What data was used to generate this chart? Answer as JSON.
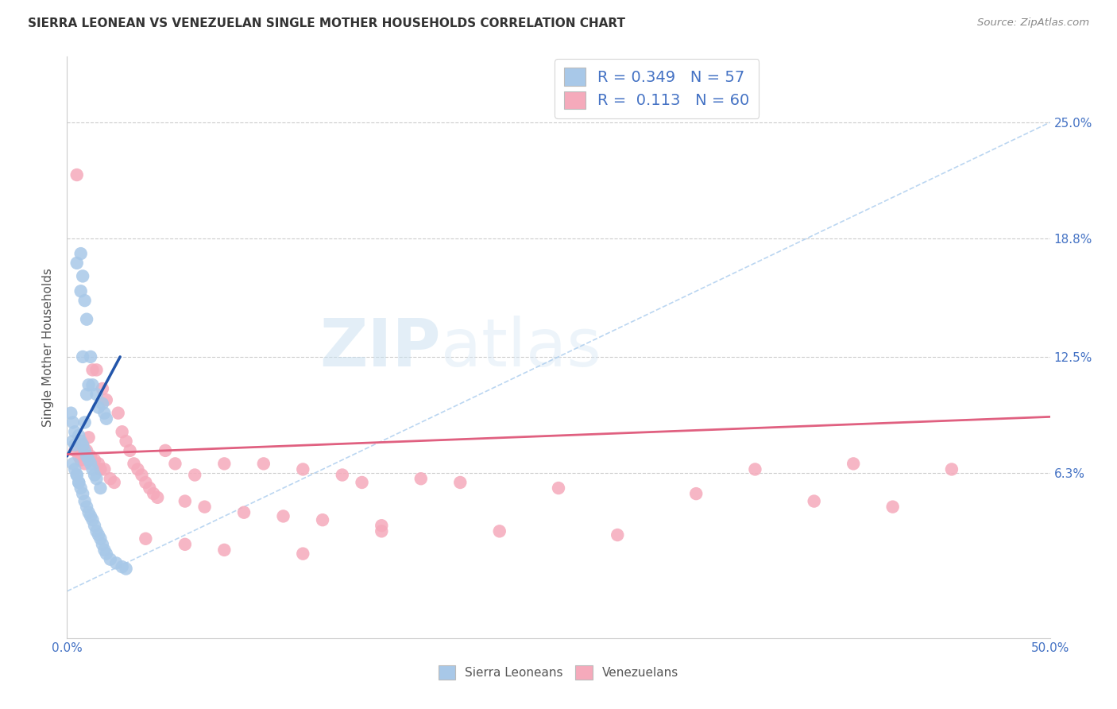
{
  "title": "SIERRA LEONEAN VS VENEZUELAN SINGLE MOTHER HOUSEHOLDS CORRELATION CHART",
  "source": "Source: ZipAtlas.com",
  "ylabel": "Single Mother Households",
  "ytick_labels": [
    "6.3%",
    "12.5%",
    "18.8%",
    "25.0%"
  ],
  "ytick_values": [
    0.063,
    0.125,
    0.188,
    0.25
  ],
  "xlim": [
    0.0,
    0.5
  ],
  "ylim": [
    -0.025,
    0.285
  ],
  "legend1_R": "0.349",
  "legend1_N": "57",
  "legend2_R": "0.113",
  "legend2_N": "60",
  "sl_color": "#a8c8e8",
  "vz_color": "#f5aabb",
  "sl_line_color": "#2255aa",
  "vz_line_color": "#e06080",
  "dash_color": "#aaccee",
  "watermark_zip": "ZIP",
  "watermark_atlas": "atlas",
  "background_color": "#ffffff",
  "sl_points_x": [
    0.002,
    0.003,
    0.003,
    0.004,
    0.004,
    0.005,
    0.005,
    0.006,
    0.006,
    0.007,
    0.007,
    0.007,
    0.008,
    0.008,
    0.008,
    0.009,
    0.009,
    0.009,
    0.01,
    0.01,
    0.01,
    0.011,
    0.011,
    0.012,
    0.012,
    0.013,
    0.013,
    0.014,
    0.015,
    0.015,
    0.016,
    0.017,
    0.018,
    0.019,
    0.02,
    0.003,
    0.004,
    0.005,
    0.006,
    0.007,
    0.008,
    0.009,
    0.01,
    0.011,
    0.012,
    0.013,
    0.014,
    0.015,
    0.016,
    0.017,
    0.018,
    0.019,
    0.02,
    0.022,
    0.025,
    0.028,
    0.03
  ],
  "sl_points_y": [
    0.095,
    0.09,
    0.08,
    0.085,
    0.078,
    0.175,
    0.062,
    0.083,
    0.058,
    0.18,
    0.16,
    0.08,
    0.168,
    0.125,
    0.078,
    0.155,
    0.09,
    0.075,
    0.145,
    0.105,
    0.072,
    0.11,
    0.07,
    0.125,
    0.068,
    0.11,
    0.065,
    0.062,
    0.105,
    0.06,
    0.098,
    0.055,
    0.1,
    0.095,
    0.092,
    0.068,
    0.065,
    0.062,
    0.058,
    0.055,
    0.052,
    0.048,
    0.045,
    0.042,
    0.04,
    0.038,
    0.035,
    0.032,
    0.03,
    0.028,
    0.025,
    0.022,
    0.02,
    0.017,
    0.015,
    0.013,
    0.012
  ],
  "vz_points_x": [
    0.004,
    0.005,
    0.006,
    0.007,
    0.008,
    0.009,
    0.01,
    0.011,
    0.012,
    0.013,
    0.014,
    0.015,
    0.016,
    0.017,
    0.018,
    0.019,
    0.02,
    0.022,
    0.024,
    0.026,
    0.028,
    0.03,
    0.032,
    0.034,
    0.036,
    0.038,
    0.04,
    0.042,
    0.044,
    0.046,
    0.05,
    0.055,
    0.06,
    0.065,
    0.07,
    0.08,
    0.09,
    0.1,
    0.11,
    0.12,
    0.13,
    0.14,
    0.15,
    0.16,
    0.18,
    0.2,
    0.22,
    0.25,
    0.28,
    0.32,
    0.35,
    0.38,
    0.4,
    0.42,
    0.04,
    0.06,
    0.08,
    0.12,
    0.16,
    0.45
  ],
  "vz_points_y": [
    0.075,
    0.222,
    0.072,
    0.07,
    0.078,
    0.068,
    0.075,
    0.082,
    0.072,
    0.118,
    0.07,
    0.118,
    0.068,
    0.065,
    0.108,
    0.065,
    0.102,
    0.06,
    0.058,
    0.095,
    0.085,
    0.08,
    0.075,
    0.068,
    0.065,
    0.062,
    0.058,
    0.055,
    0.052,
    0.05,
    0.075,
    0.068,
    0.048,
    0.062,
    0.045,
    0.068,
    0.042,
    0.068,
    0.04,
    0.065,
    0.038,
    0.062,
    0.058,
    0.035,
    0.06,
    0.058,
    0.032,
    0.055,
    0.03,
    0.052,
    0.065,
    0.048,
    0.068,
    0.045,
    0.028,
    0.025,
    0.022,
    0.02,
    0.032,
    0.065
  ],
  "sl_line_x": [
    0.0,
    0.027
  ],
  "sl_line_y": [
    0.072,
    0.125
  ],
  "vz_line_x": [
    0.0,
    0.5
  ],
  "vz_line_y": [
    0.073,
    0.093
  ],
  "dash_line_x": [
    0.0,
    0.5
  ],
  "dash_line_y": [
    0.0,
    0.25
  ]
}
